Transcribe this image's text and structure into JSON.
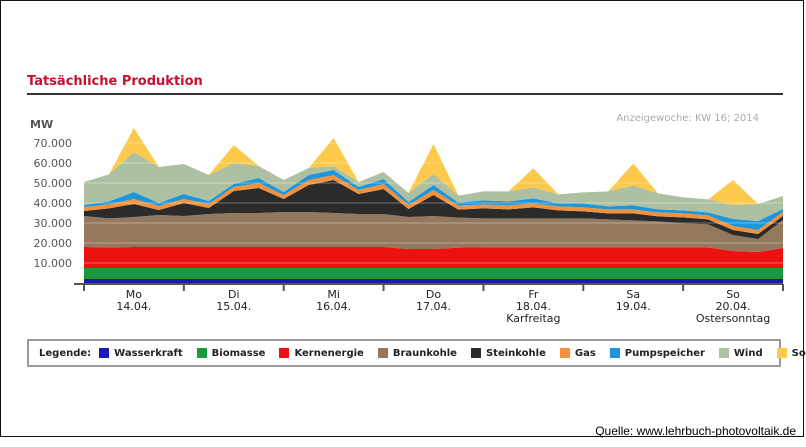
{
  "title": "Tatsächliche Produktion",
  "source": "Quelle: www.lehrbuch-photovoltaik.de",
  "chart_data": {
    "type": "area",
    "stacked": true,
    "title": "Tatsächliche Produktion",
    "ylabel": "MW",
    "annotation": "Anzeigewoche: KW 16; 2014",
    "ylim": [
      0,
      80000
    ],
    "yticks": [
      "10.000",
      "20.000",
      "30.000",
      "40.000",
      "50.000",
      "60.000",
      "70.000"
    ],
    "yticks_values": [
      10000,
      20000,
      30000,
      40000,
      50000,
      60000,
      70000
    ],
    "grid": true,
    "x_labels": [
      {
        "day": "Mo",
        "date": "14.04.",
        "note": ""
      },
      {
        "day": "Di",
        "date": "15.04.",
        "note": ""
      },
      {
        "day": "Mi",
        "date": "16.04.",
        "note": ""
      },
      {
        "day": "Do",
        "date": "17.04.",
        "note": ""
      },
      {
        "day": "Fr",
        "date": "18.04.",
        "note": "Karfreitag"
      },
      {
        "day": "Sa",
        "date": "19.04.",
        "note": ""
      },
      {
        "day": "So",
        "date": "20.04.",
        "note": "Ostersonntag"
      }
    ],
    "x": [
      0,
      0.25,
      0.5,
      0.75,
      1,
      1.25,
      1.5,
      1.75,
      2,
      2.25,
      2.5,
      2.75,
      3,
      3.25,
      3.5,
      3.75,
      4,
      4.25,
      4.5,
      4.75,
      5,
      5.25,
      5.5,
      5.75,
      6,
      6.25,
      6.5,
      6.75,
      7
    ],
    "legend_title": "Legende:",
    "legend_position": "bottom",
    "series": [
      {
        "name": "Wasserkraft",
        "color": "#1a1ab8",
        "values": [
          2000,
          2000,
          2000,
          2000,
          2000,
          2000,
          2000,
          2000,
          2000,
          2000,
          2000,
          2000,
          2000,
          2000,
          2000,
          2000,
          2000,
          2000,
          2000,
          2000,
          2000,
          2000,
          2000,
          2000,
          2000,
          2000,
          2000,
          2000,
          2000
        ]
      },
      {
        "name": "Biomasse",
        "color": "#1a9a3c",
        "values": [
          5500,
          5500,
          5500,
          5500,
          5500,
          5500,
          5500,
          5500,
          5500,
          5500,
          5500,
          5500,
          5500,
          5500,
          5500,
          5500,
          5500,
          5500,
          5500,
          5500,
          5500,
          5500,
          5500,
          5500,
          5500,
          5500,
          5500,
          5500,
          5500
        ]
      },
      {
        "name": "Kernenergie",
        "color": "#ee1111",
        "values": [
          10500,
          10300,
          10500,
          10500,
          10500,
          10500,
          10500,
          10500,
          10500,
          10500,
          10500,
          10500,
          10500,
          9500,
          9500,
          10200,
          10300,
          10300,
          10300,
          10300,
          10300,
          10300,
          10300,
          10300,
          10300,
          10300,
          8500,
          8000,
          10000
        ]
      },
      {
        "name": "Braunkohle",
        "color": "#94785e",
        "values": [
          15500,
          14500,
          15000,
          16000,
          15500,
          16500,
          17000,
          17000,
          17500,
          17500,
          17000,
          16500,
          16500,
          16000,
          16500,
          15000,
          14500,
          14500,
          14500,
          14500,
          14500,
          14000,
          13500,
          13000,
          12000,
          11500,
          8000,
          6500,
          14000
        ]
      },
      {
        "name": "Steinkohle",
        "color": "#2b2b2b",
        "values": [
          2500,
          5000,
          6500,
          2500,
          6500,
          3000,
          11000,
          12500,
          6500,
          13500,
          16500,
          10000,
          12500,
          4000,
          10500,
          4000,
          5000,
          4500,
          5500,
          4000,
          3500,
          3000,
          3500,
          2500,
          3000,
          2500,
          2500,
          2500,
          2000
        ]
      },
      {
        "name": "Gas",
        "color": "#f4913a",
        "values": [
          2000,
          2000,
          2500,
          2000,
          2000,
          2000,
          2000,
          2500,
          2000,
          2500,
          2500,
          2000,
          2500,
          2000,
          2500,
          2000,
          2000,
          2000,
          2000,
          2000,
          2000,
          2000,
          2000,
          2000,
          2000,
          2000,
          2000,
          2000,
          2000
        ]
      },
      {
        "name": "Pumpspeicher",
        "color": "#1e96dc",
        "values": [
          1000,
          1500,
          3500,
          1500,
          2500,
          1500,
          1500,
          2500,
          1500,
          2500,
          2500,
          1500,
          2500,
          1500,
          2500,
          1500,
          2000,
          2000,
          2500,
          1500,
          2000,
          1500,
          2000,
          1500,
          1500,
          1500,
          3500,
          4500,
          1500
        ]
      },
      {
        "name": "Wind",
        "color": "#aec0a2",
        "values": [
          11500,
          13500,
          20000,
          18000,
          15000,
          13000,
          10500,
          6000,
          6000,
          3500,
          2000,
          2500,
          3500,
          4500,
          5500,
          3500,
          4500,
          5000,
          5500,
          4500,
          5500,
          7500,
          10000,
          8000,
          6500,
          6500,
          7000,
          8500,
          6500
        ]
      },
      {
        "name": "Solar",
        "color": "#fdc94a",
        "values": [
          0,
          0,
          12000,
          0,
          0,
          0,
          9000,
          0,
          0,
          0,
          14000,
          0,
          0,
          0,
          15000,
          0,
          0,
          0,
          9500,
          0,
          0,
          0,
          11000,
          0,
          0,
          0,
          12500,
          0,
          0
        ]
      }
    ]
  }
}
